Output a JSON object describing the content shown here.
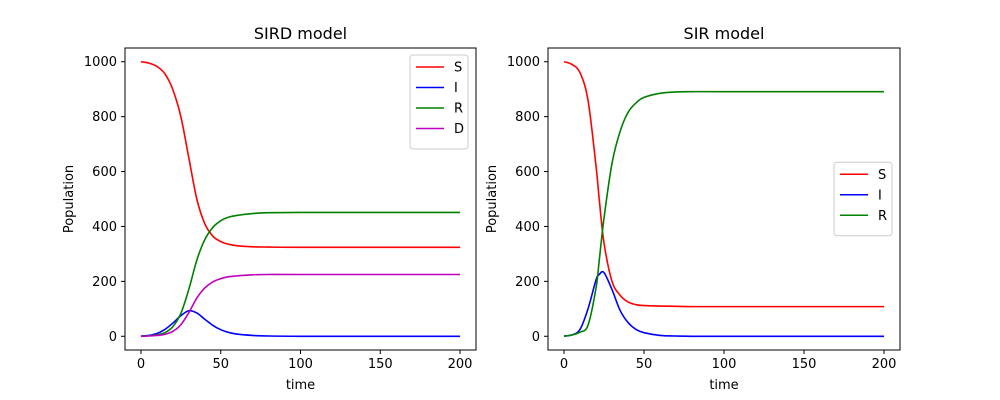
{
  "chart_data": [
    {
      "type": "line",
      "title": "SIRD model",
      "xlabel": "time",
      "ylabel": "Population",
      "xlim": [
        -10,
        210
      ],
      "ylim": [
        -50,
        1050
      ],
      "xticks": [
        0,
        50,
        100,
        150,
        200
      ],
      "yticks": [
        0,
        200,
        400,
        600,
        800,
        1000
      ],
      "legend_position": "upper right",
      "x": [
        0,
        5,
        10,
        15,
        20,
        25,
        30,
        35,
        40,
        45,
        50,
        55,
        60,
        70,
        80,
        100,
        150,
        200
      ],
      "series": [
        {
          "name": "S",
          "color": "#ff0000",
          "values": [
            1000,
            995,
            983,
            956,
            898,
            800,
            650,
            500,
            410,
            365,
            345,
            335,
            330,
            326,
            325,
            324,
            324,
            324
          ]
        },
        {
          "name": "I",
          "color": "#0000ff",
          "values": [
            1,
            3,
            10,
            25,
            48,
            75,
            93,
            85,
            62,
            40,
            24,
            14,
            8,
            3,
            1,
            0,
            0,
            0
          ]
        },
        {
          "name": "R",
          "color": "#008000",
          "values": [
            0,
            2,
            5,
            13,
            35,
            83,
            171,
            277,
            352,
            396,
            421,
            434,
            440,
            447,
            450,
            451,
            451,
            451
          ]
        },
        {
          "name": "D",
          "color": "#bf00bf",
          "values": [
            0,
            1,
            3,
            7,
            18,
            42,
            86,
            139,
            176,
            198,
            210,
            217,
            220,
            224,
            225,
            225,
            225,
            225
          ]
        }
      ]
    },
    {
      "type": "line",
      "title": "SIR model",
      "xlabel": "time",
      "ylabel": "Population",
      "xlim": [
        -10,
        210
      ],
      "ylim": [
        -50,
        1050
      ],
      "xticks": [
        0,
        50,
        100,
        150,
        200
      ],
      "yticks": [
        0,
        200,
        400,
        600,
        800,
        1000
      ],
      "legend_position": "center right",
      "x": [
        0,
        5,
        10,
        15,
        20,
        22,
        25,
        30,
        35,
        40,
        45,
        50,
        60,
        70,
        80,
        100,
        150,
        200
      ],
      "series": [
        {
          "name": "S",
          "color": "#ff0000",
          "values": [
            1000,
            990,
            960,
            860,
            620,
            500,
            340,
            200,
            150,
            125,
            115,
            112,
            110,
            109,
            108,
            108,
            108,
            108
          ]
        },
        {
          "name": "I",
          "color": "#0000ff",
          "values": [
            1,
            5,
            25,
            100,
            205,
            225,
            232,
            170,
            95,
            50,
            25,
            13,
            3,
            1,
            0,
            0,
            0,
            0
          ]
        },
        {
          "name": "R",
          "color": "#008000",
          "values": [
            0,
            5,
            15,
            40,
            175,
            275,
            430,
            630,
            745,
            815,
            850,
            870,
            885,
            890,
            891,
            891,
            891,
            891
          ]
        }
      ]
    }
  ]
}
